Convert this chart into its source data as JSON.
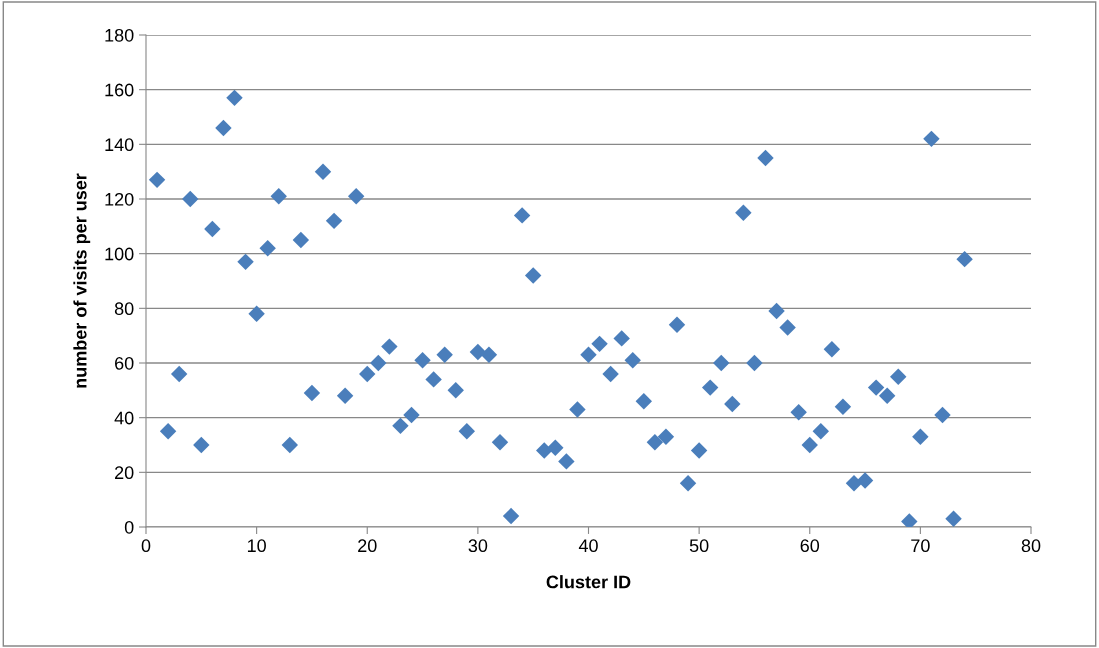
{
  "chart_data": {
    "type": "scatter",
    "xlabel": "Cluster ID",
    "ylabel": "number of visits per user",
    "x": [
      1,
      2,
      3,
      4,
      5,
      6,
      7,
      8,
      9,
      10,
      11,
      12,
      13,
      14,
      15,
      16,
      17,
      18,
      19,
      20,
      21,
      22,
      23,
      24,
      25,
      26,
      27,
      28,
      29,
      30,
      31,
      32,
      33,
      34,
      35,
      36,
      37,
      38,
      39,
      40,
      41,
      42,
      43,
      44,
      45,
      46,
      47,
      48,
      49,
      50,
      51,
      52,
      53,
      54,
      55,
      56,
      57,
      58,
      59,
      60,
      61,
      62,
      63,
      64,
      65,
      66,
      67,
      68,
      69,
      70,
      71,
      72,
      73,
      74
    ],
    "series": [
      {
        "color": "#4a7ebb",
        "values": [
          127,
          35,
          56,
          120,
          30,
          109,
          146,
          157,
          97,
          78,
          102,
          121,
          30,
          105,
          49,
          130,
          112,
          48,
          121,
          56,
          60,
          66,
          37,
          41,
          61,
          54,
          63,
          50,
          35,
          64,
          63,
          31,
          4,
          114,
          92,
          28,
          29,
          24,
          43,
          63,
          67,
          56,
          69,
          61,
          46,
          31,
          33,
          74,
          16,
          28,
          51,
          60,
          45,
          115,
          60,
          135,
          79,
          73,
          42,
          30,
          35,
          65,
          44,
          16,
          17,
          51,
          48,
          55,
          2,
          33,
          142,
          41,
          3,
          98
        ]
      }
    ],
    "xlim": [
      0,
      80
    ],
    "xticks": [
      0,
      10,
      20,
      30,
      40,
      50,
      60,
      70,
      80
    ],
    "ylim": [
      0,
      180
    ],
    "yticks": [
      0,
      20,
      40,
      60,
      80,
      100,
      120,
      140,
      160,
      180
    ],
    "grid": "y",
    "marker": "diamond"
  }
}
